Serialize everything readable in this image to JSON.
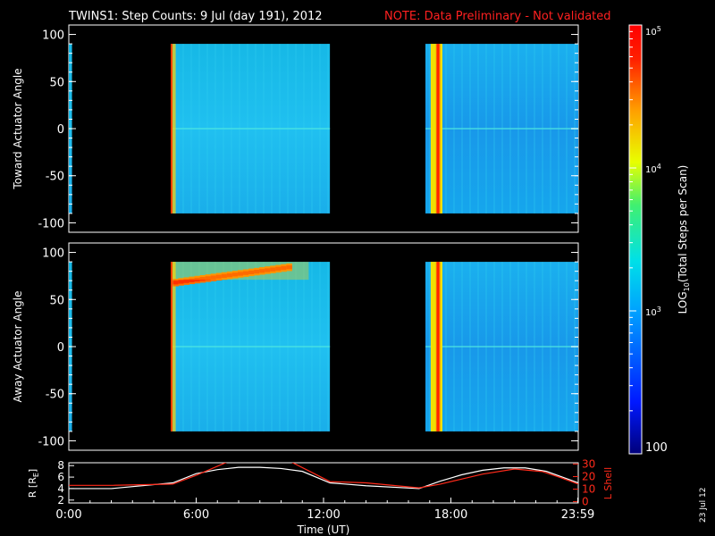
{
  "title": {
    "main": "TWINS1: Step Counts:  9 Jul (day 191), 2012",
    "note": "NOTE: Data Preliminary - Not validated",
    "note_color": "#ff2020"
  },
  "side_stamp": "23 Jul 12",
  "colors": {
    "axes": "#ffffff",
    "background": "#000000",
    "lshell": "#ff2a1a",
    "radius": "#ffffff"
  },
  "chart_data": [
    {
      "type": "heatmap",
      "ylabel": "Toward Actuator Angle",
      "ylim": [
        -110,
        110
      ],
      "yticks": [
        100,
        50,
        0,
        -50,
        -100
      ],
      "xlim_hours": [
        0,
        24
      ],
      "data_angle_range": [
        -90,
        90
      ],
      "coverage_hours": [
        [
          0,
          0.15
        ],
        [
          4.8,
          12.3
        ],
        [
          16.8,
          24
        ]
      ],
      "bright_stripes_hours": [
        [
          4.8,
          4.95
        ],
        [
          17.05,
          17.6
        ]
      ],
      "dominant_level": "≈10^3"
    },
    {
      "type": "heatmap",
      "ylabel": "Away Actuator Angle",
      "ylim": [
        -110,
        110
      ],
      "yticks": [
        100,
        50,
        0,
        -50,
        -100
      ],
      "xlim_hours": [
        0,
        24
      ],
      "data_angle_range": [
        -90,
        90
      ],
      "coverage_hours": [
        [
          0,
          0.15
        ],
        [
          4.8,
          12.3
        ],
        [
          16.8,
          24
        ]
      ],
      "bright_stripes_hours": [
        [
          4.8,
          4.95
        ],
        [
          17.05,
          17.6
        ]
      ],
      "enhancement_band": {
        "start_hours": 4.9,
        "end_hours": 10.5,
        "angle_start": 68,
        "angle_end": 85
      },
      "dominant_level": "≈10^3"
    },
    {
      "type": "line",
      "ylabel_left": "R [R",
      "ylabel_left_sub": "E",
      "ylabel_left_tail": "]",
      "ylim_left": [
        1.5,
        8.5
      ],
      "yticks_left": [
        8,
        6,
        4,
        2
      ],
      "ylabel_right": "L Shell",
      "ylim_right": [
        -1,
        31
      ],
      "yticks_right": [
        30,
        20,
        10,
        0
      ],
      "xticks": [
        "0:00",
        "6:00",
        "12:00",
        "18:00",
        "23:59"
      ],
      "xtick_hours": [
        0,
        6,
        12,
        18,
        23.98
      ],
      "xlabel": "Time (UT)",
      "series": [
        {
          "color": "#ffffff",
          "x": [
            0,
            2,
            4.9,
            6,
            7,
            8,
            9,
            10,
            11,
            12.3,
            14,
            16.5,
            17.5,
            18.5,
            19.5,
            20.5,
            21.5,
            22.5,
            24
          ],
          "y": [
            4.0,
            4.0,
            5.0,
            6.6,
            7.3,
            7.7,
            7.7,
            7.5,
            7.0,
            5.0,
            4.5,
            4.0,
            5.3,
            6.4,
            7.2,
            7.6,
            7.6,
            7.0,
            5.0
          ]
        },
        {
          "color": "#ff2a1a",
          "axis": "right",
          "x": [
            0,
            2,
            4.9,
            6,
            7.8,
            10.2,
            12.3,
            14,
            16.5,
            17.5,
            18.5,
            19.5,
            21,
            22.3,
            23.2,
            24
          ],
          "y": [
            13,
            13,
            14,
            21,
            34,
            34,
            16,
            15,
            11,
            14,
            18,
            22,
            26,
            24,
            19,
            14
          ]
        }
      ]
    }
  ],
  "colorbar": {
    "label_pre": "LOG",
    "label_sub": "10",
    "label_post": "(Total Steps per Scan)",
    "ticks": [
      {
        "base": "10",
        "exp": "5",
        "value": 100000
      },
      {
        "base": "10",
        "exp": "4",
        "value": 10000
      },
      {
        "base": "10",
        "exp": "3",
        "value": 1000
      }
    ],
    "bottom_label": "100",
    "range": [
      100,
      100000
    ],
    "scale": "log"
  }
}
